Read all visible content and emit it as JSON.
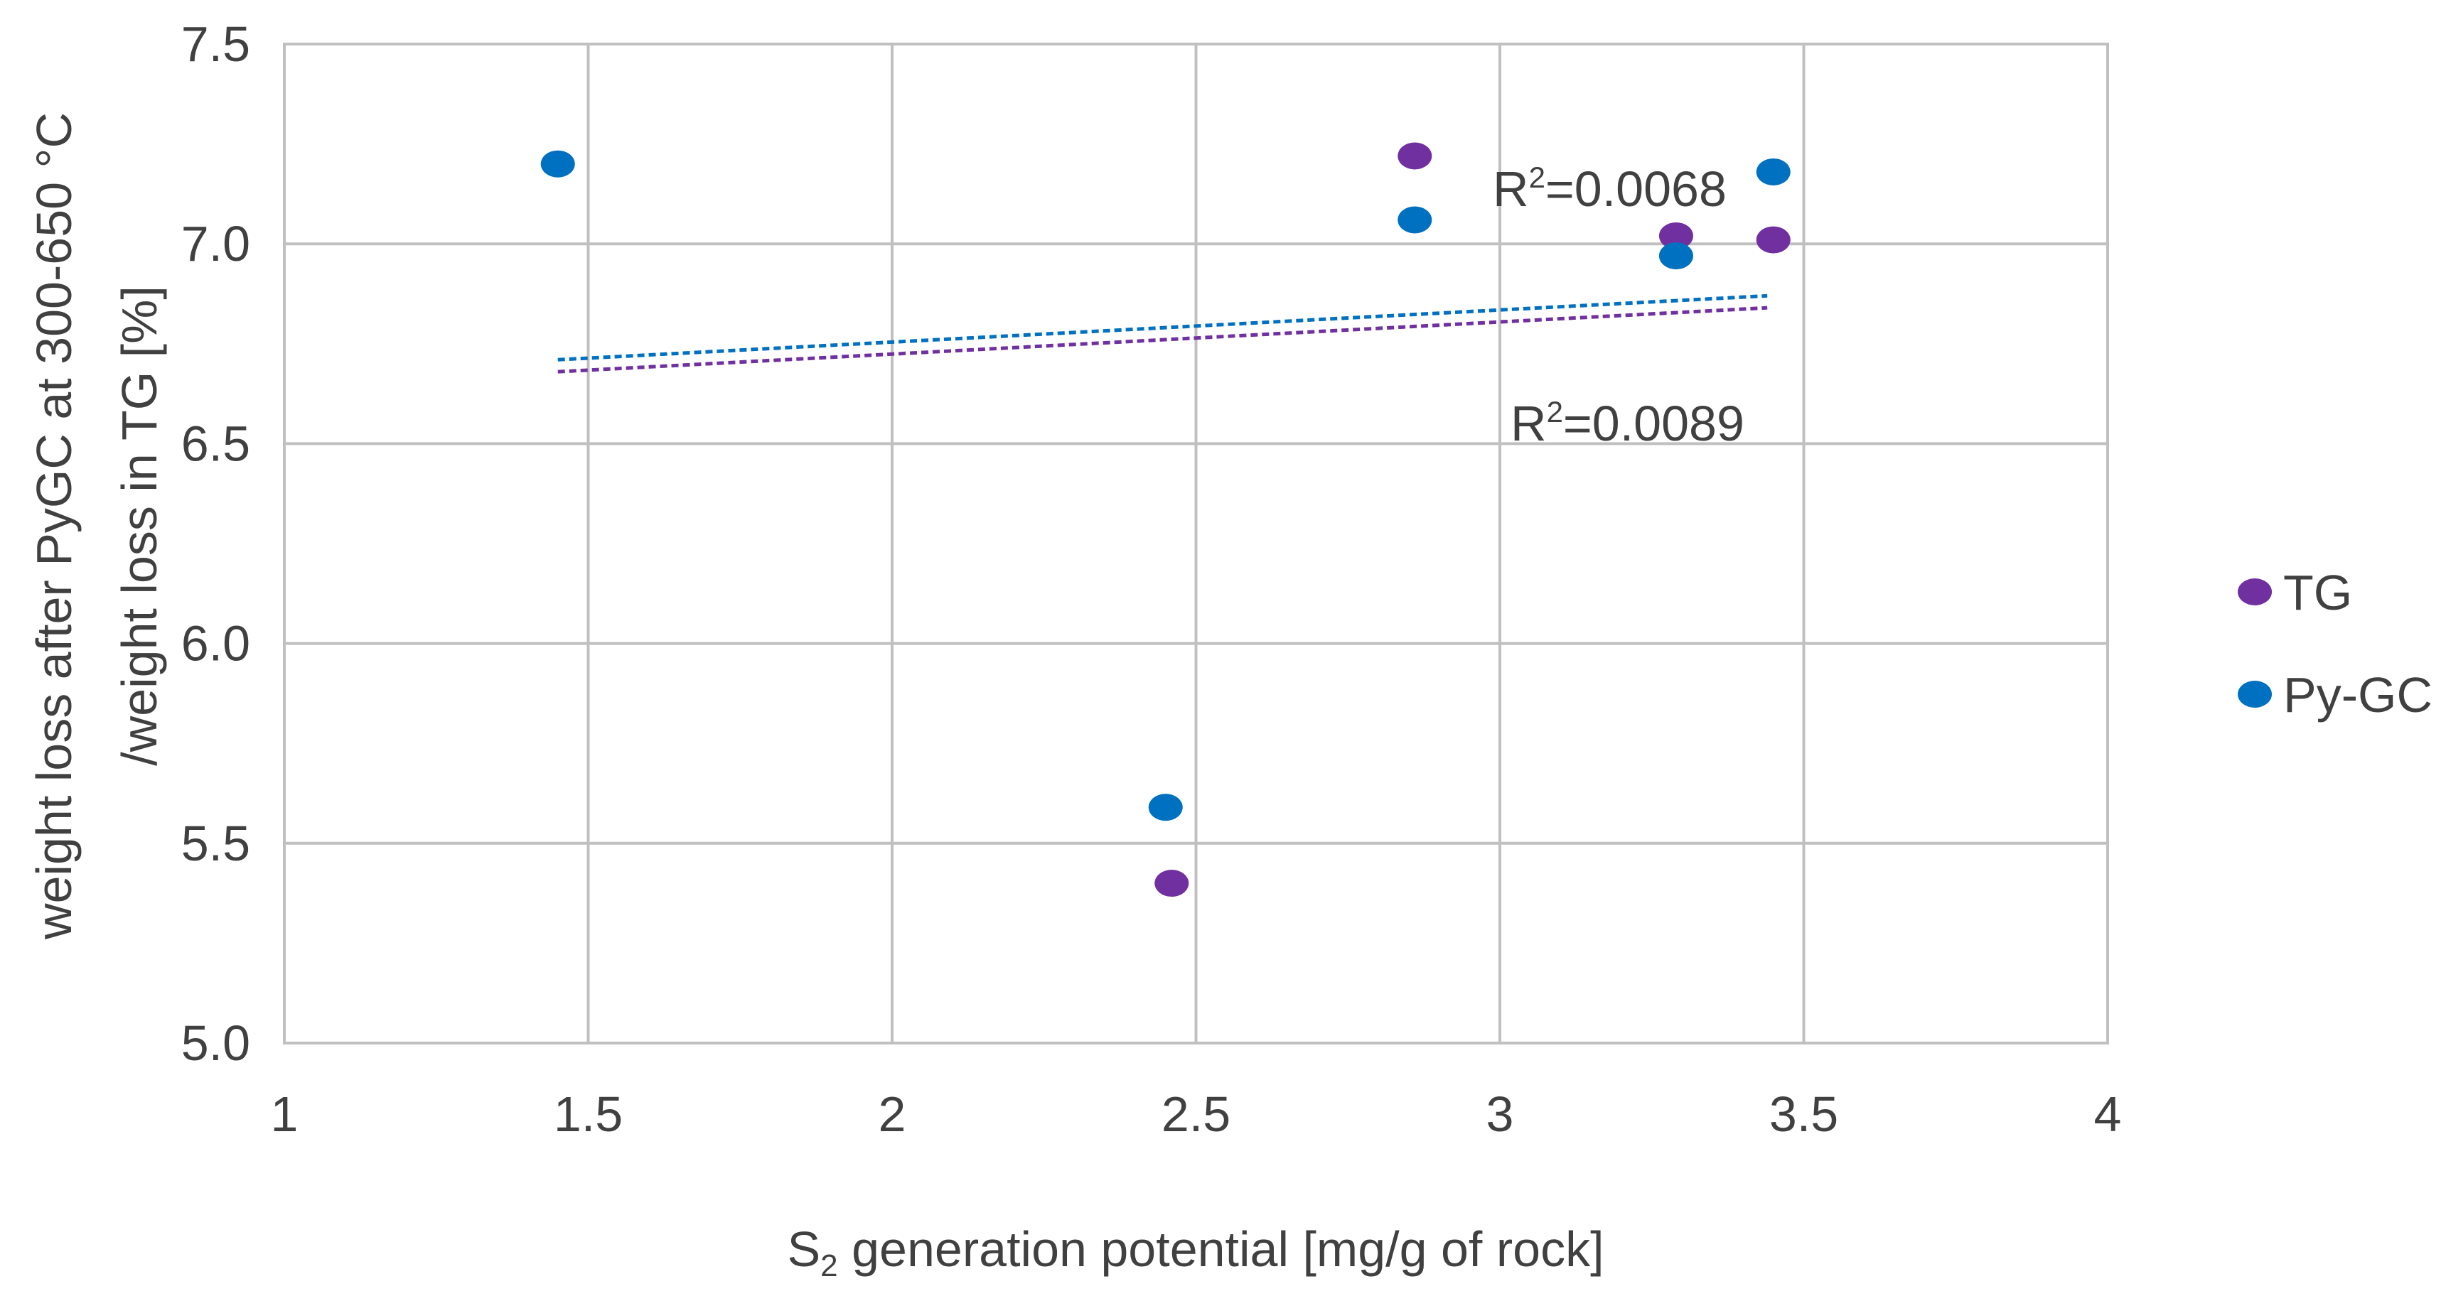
{
  "chart_data": {
    "type": "scatter",
    "title": "",
    "xlabel_prefix": "S",
    "xlabel_subscript": "2",
    "xlabel_rest": " generation  potential [mg/g of rock]",
    "ylabel_line1": "weight loss after PyGC at 300-650 °C",
    "ylabel_line2": "/weight loss in TG [%]",
    "xlim": [
      1,
      4
    ],
    "ylim": [
      5.0,
      7.5
    ],
    "x_ticks": [
      1,
      1.5,
      2,
      2.5,
      3,
      3.5,
      4
    ],
    "x_tick_labels": [
      "1",
      "1.5",
      "2",
      "2.5",
      "3",
      "3.5",
      "4"
    ],
    "y_ticks": [
      5.0,
      5.5,
      6.0,
      6.5,
      7.0,
      7.5
    ],
    "y_tick_labels": [
      "5.0",
      "5.5",
      "6.0",
      "6.5",
      "7.0",
      "7.5"
    ],
    "grid": true,
    "legend_position": "right",
    "series": [
      {
        "name": "TG",
        "color": "#7030a0",
        "points": [
          {
            "x": 2.46,
            "y": 5.4
          },
          {
            "x": 2.86,
            "y": 7.22
          },
          {
            "x": 3.29,
            "y": 7.02
          },
          {
            "x": 3.45,
            "y": 7.01
          }
        ],
        "trendline": {
          "x_start": 1.45,
          "y_start": 6.68,
          "x_end": 3.44,
          "y_end": 6.84
        },
        "r2_label_base": "R",
        "r2_label_sup": "2",
        "r2_label_value": "=0.0089"
      },
      {
        "name": "Py-GC",
        "color": "#0070c0",
        "points": [
          {
            "x": 1.45,
            "y": 7.2
          },
          {
            "x": 2.45,
            "y": 5.59
          },
          {
            "x": 2.86,
            "y": 7.06
          },
          {
            "x": 3.29,
            "y": 6.97
          },
          {
            "x": 3.45,
            "y": 7.18
          }
        ],
        "trendline": {
          "x_start": 1.45,
          "y_start": 6.71,
          "x_end": 3.44,
          "y_end": 6.87
        },
        "r2_label_base": "R",
        "r2_label_sup": "2",
        "r2_label_value": "=0.0068"
      }
    ]
  }
}
